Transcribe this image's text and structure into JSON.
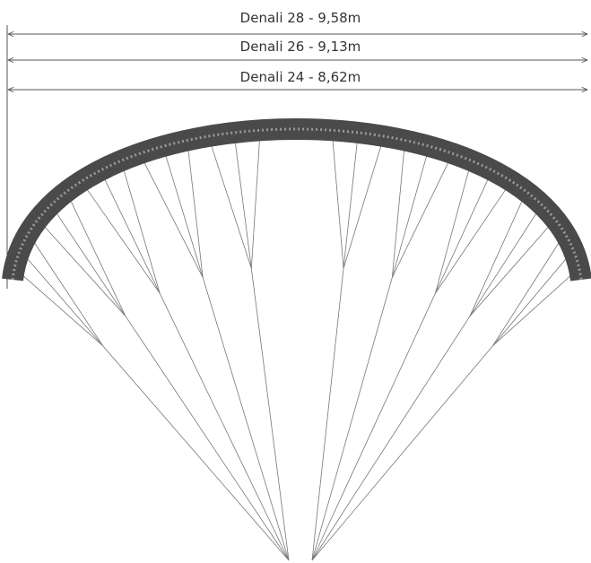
{
  "dimension_lines": [
    {
      "label": "Denali 28 - 9,58m"
    },
    {
      "label": "Denali 26 - 9,13m"
    },
    {
      "label": "Denali 24 - 8,62m"
    }
  ]
}
